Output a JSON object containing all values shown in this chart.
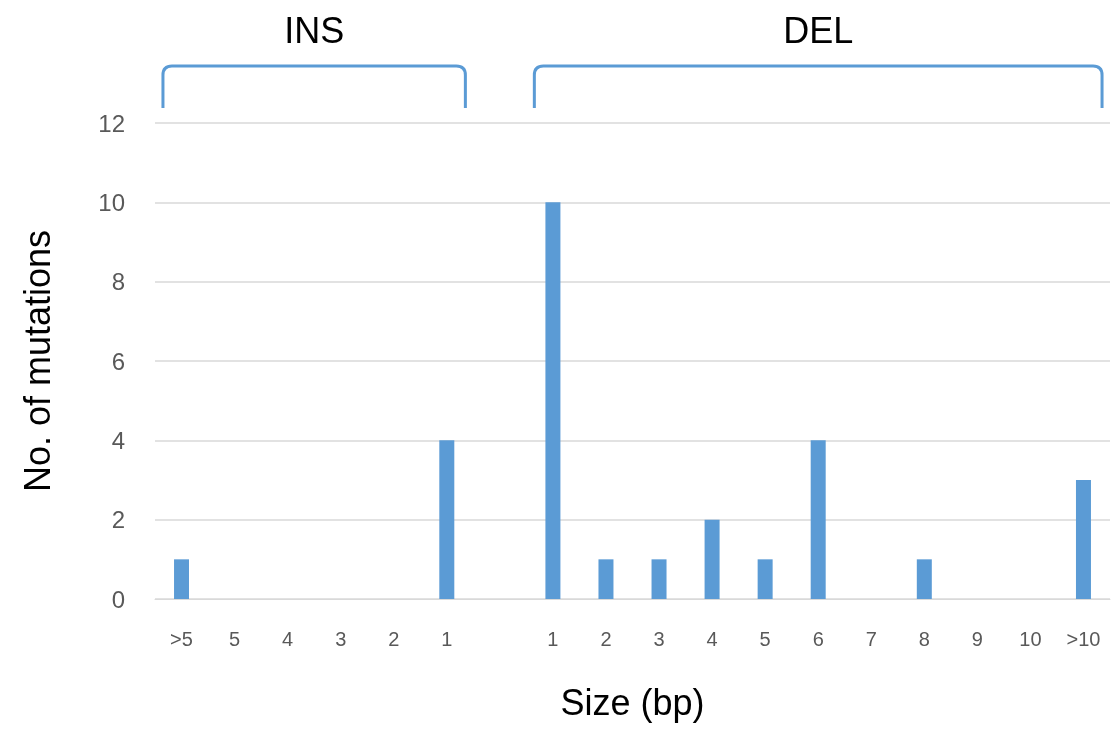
{
  "chart_data": {
    "type": "bar",
    "xlabel": "Size (bp)",
    "ylabel": "No. of mutations",
    "categories": [
      ">5",
      "5",
      "4",
      "3",
      "2",
      "1",
      null,
      "1",
      "2",
      "3",
      "4",
      "5",
      "6",
      "7",
      "8",
      "9",
      "10",
      ">10"
    ],
    "values": [
      1,
      0,
      0,
      0,
      0,
      4,
      null,
      10,
      1,
      1,
      2,
      1,
      4,
      0,
      1,
      0,
      0,
      3
    ],
    "color": "#5b9bd5",
    "ylim": [
      0,
      12
    ],
    "yticks": [
      0,
      2,
      4,
      6,
      8,
      10,
      12
    ],
    "grid": "y",
    "annotations": [
      "INS",
      "DEL"
    ]
  }
}
